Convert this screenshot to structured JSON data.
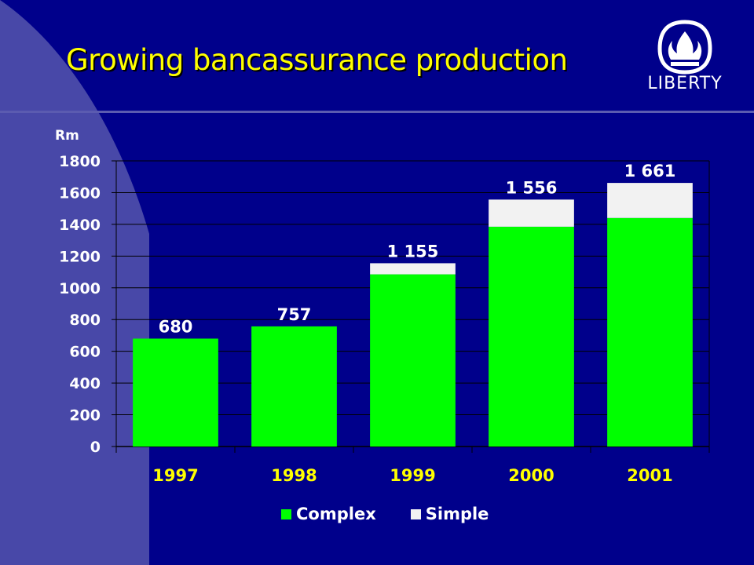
{
  "slide": {
    "title": "Growing bancassurance production",
    "logo_text": "LIBERTY",
    "logo_icon": "flame-shield-icon"
  },
  "colors": {
    "background": "#00008b",
    "side_panel": "#4848a8",
    "title": "#ffff00",
    "complex": "#00ff00",
    "simple": "#f2f2f2"
  },
  "chart_data": {
    "type": "bar",
    "stacked": true,
    "ylabel": "Rm",
    "xlabel": "",
    "ylim": [
      0,
      1800
    ],
    "yticks": [
      0,
      200,
      400,
      600,
      800,
      1000,
      1200,
      1400,
      1600,
      1800
    ],
    "categories": [
      "1997",
      "1998",
      "1999",
      "2000",
      "2001"
    ],
    "series": [
      {
        "name": "Complex",
        "values": [
          680,
          757,
          1085,
          1385,
          1440
        ]
      },
      {
        "name": "Simple",
        "values": [
          0,
          0,
          70,
          171,
          221
        ]
      }
    ],
    "total_labels": [
      "680",
      "757",
      "1 155",
      "1 556",
      "1 661"
    ],
    "grid": true,
    "legend_position": "bottom"
  }
}
